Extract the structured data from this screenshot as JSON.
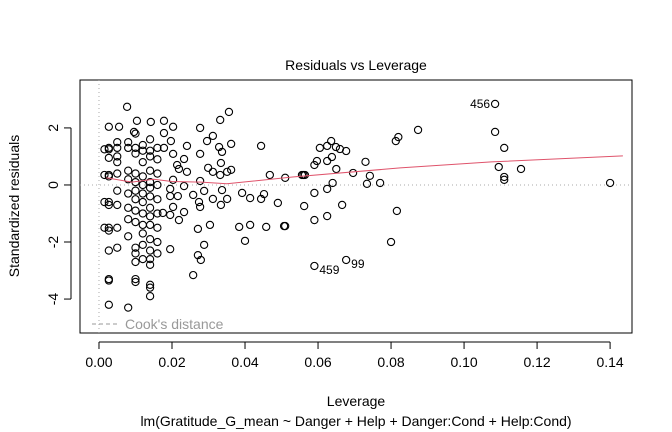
{
  "chart_data": {
    "type": "scatter",
    "title": "Residuals vs Leverage",
    "xlabel": "Leverage",
    "ylabel": "Standardized residuals",
    "subtitle": "lm(Gratitude_G_mean ~ Danger + Help + Danger:Cond + Help:Cond)",
    "xlim": [
      -0.0052,
      0.146
    ],
    "ylim": [
      -5.19,
      3.68
    ],
    "x_ticks": [
      "0.00",
      "0.02",
      "0.04",
      "0.06",
      "0.08",
      "0.10",
      "0.12",
      "0.14"
    ],
    "x_tick_values": [
      0,
      0.02,
      0.04,
      0.06,
      0.08,
      0.1,
      0.12,
      0.14
    ],
    "y_ticks": [
      "-4",
      "-2",
      "0",
      "2"
    ],
    "y_tick_values": [
      -4,
      -2,
      0,
      2
    ],
    "grid": false,
    "legend": {
      "position": "bottom-left",
      "entries": [
        "Cook's distance"
      ]
    },
    "colors": {
      "points": "#000000",
      "smooth": "#df536b",
      "reference": "#aaaaaa",
      "legend": "#999999"
    },
    "labeled_points": [
      {
        "label": "456",
        "x": 0.1085,
        "y": 2.84
      },
      {
        "label": "459",
        "x": 0.059,
        "y": -2.84
      },
      {
        "label": "99",
        "x": 0.0677,
        "y": -2.63
      }
    ],
    "points": [
      [
        0.1085,
        1.86
      ],
      [
        0.111,
        1.3
      ],
      [
        0.1095,
        0.63
      ],
      [
        0.111,
        0.28
      ],
      [
        0.111,
        0.18
      ],
      [
        0.1156,
        0.56
      ],
      [
        0.14,
        0.07
      ],
      [
        0.0874,
        1.93
      ],
      [
        0.0813,
        1.54
      ],
      [
        0.082,
        1.68
      ],
      [
        0.0816,
        -0.91
      ],
      [
        0.08,
        -2.0
      ],
      [
        0.0734,
        0.04
      ],
      [
        0.0742,
        0.32
      ],
      [
        0.073,
        0.81
      ],
      [
        0.0696,
        0.42
      ],
      [
        0.0677,
        1.19
      ],
      [
        0.066,
        1.26
      ],
      [
        0.0649,
        1.33
      ],
      [
        0.0625,
        1.37
      ],
      [
        0.0636,
        1.54
      ],
      [
        0.0605,
        1.3
      ],
      [
        0.059,
        0.7
      ],
      [
        0.0666,
        -0.7
      ],
      [
        0.0625,
        -1.09
      ],
      [
        0.059,
        -1.23
      ],
      [
        0.0625,
        -0.14
      ],
      [
        0.064,
        0.07
      ],
      [
        0.059,
        -0.28
      ],
      [
        0.056,
        0.35
      ],
      [
        0.0562,
        -0.74
      ],
      [
        0.0507,
        -1.44
      ],
      [
        0.0444,
        1.37
      ],
      [
        0.077,
        0.07
      ],
      [
        0.065,
        0.56
      ],
      [
        0.0625,
        0.84
      ],
      [
        0.0597,
        0.84
      ],
      [
        0.0638,
        0.98
      ],
      [
        0.0077,
        2.74
      ],
      [
        0.0027,
        2.04
      ],
      [
        0.0055,
        2.04
      ],
      [
        0.0104,
        2.25
      ],
      [
        0.0142,
        2.21
      ],
      [
        0.0178,
        2.25
      ],
      [
        0.0203,
        2.04
      ],
      [
        0.0178,
        1.82
      ],
      [
        0.0096,
        1.86
      ],
      [
        0.0277,
        2.0
      ],
      [
        0.0332,
        2.28
      ],
      [
        0.0356,
        2.56
      ],
      [
        0.0312,
        1.72
      ],
      [
        0.0296,
        1.54
      ],
      [
        0.0241,
        1.37
      ],
      [
        0.0197,
        1.54
      ],
      [
        0.0178,
        1.3
      ],
      [
        0.0203,
        1.09
      ],
      [
        0.0233,
        0.91
      ],
      [
        0.0277,
        1.09
      ],
      [
        0.0337,
        1.16
      ],
      [
        0.0362,
        1.44
      ],
      [
        0.0329,
        1.33
      ],
      [
        0.0334,
        0.77
      ],
      [
        0.0299,
        0.6
      ],
      [
        0.0312,
        0.46
      ],
      [
        0.0351,
        0.46
      ],
      [
        0.0362,
        0.53
      ],
      [
        0.0332,
        0.35
      ],
      [
        0.0214,
        0.7
      ],
      [
        0.0219,
        0.56
      ],
      [
        0.0241,
        0.46
      ],
      [
        0.0203,
        0.18
      ],
      [
        0.0277,
        0.14
      ],
      [
        0.0468,
        0.35
      ],
      [
        0.051,
        0.25
      ],
      [
        0.0556,
        0.35
      ],
      [
        0.0564,
        0.35
      ],
      [
        0.0233,
        -0.04
      ],
      [
        0.0195,
        -0.14
      ],
      [
        0.0195,
        -0.39
      ],
      [
        0.0216,
        -0.39
      ],
      [
        0.0258,
        -0.35
      ],
      [
        0.0288,
        -0.21
      ],
      [
        0.0337,
        -0.18
      ],
      [
        0.0334,
        -0.7
      ],
      [
        0.0351,
        -0.49
      ],
      [
        0.0312,
        -0.49
      ],
      [
        0.0274,
        -0.6
      ],
      [
        0.0277,
        -0.77
      ],
      [
        0.0203,
        -0.77
      ],
      [
        0.0175,
        -0.98
      ],
      [
        0.0195,
        -1.05
      ],
      [
        0.0219,
        -1.23
      ],
      [
        0.0233,
        -0.95
      ],
      [
        0.0304,
        -1.4
      ],
      [
        0.0271,
        -1.54
      ],
      [
        0.0288,
        -2.1
      ],
      [
        0.0195,
        -2.25
      ],
      [
        0.0271,
        -2.46
      ],
      [
        0.0279,
        -2.63
      ],
      [
        0.0258,
        -3.16
      ],
      [
        0.0392,
        -0.28
      ],
      [
        0.0414,
        -0.46
      ],
      [
        0.0452,
        -0.32
      ],
      [
        0.0444,
        -0.49
      ],
      [
        0.049,
        -0.63
      ],
      [
        0.0384,
        -1.47
      ],
      [
        0.0414,
        -1.4
      ],
      [
        0.0458,
        -1.47
      ],
      [
        0.051,
        -1.44
      ],
      [
        0.04,
        -1.96
      ],
      [
        0.0027,
        1.3
      ],
      [
        0.0027,
        1.25
      ],
      [
        0.0027,
        0.95
      ],
      [
        0.0027,
        0.35
      ],
      [
        0.0027,
        0.3
      ],
      [
        0.0027,
        -0.6
      ],
      [
        0.0027,
        -0.7
      ],
      [
        0.0027,
        -1.5
      ],
      [
        0.0027,
        -1.6
      ],
      [
        0.0027,
        -2.3
      ],
      [
        0.0027,
        -3.3
      ],
      [
        0.0027,
        -3.35
      ],
      [
        0.0027,
        -4.2
      ],
      [
        0.0015,
        1.25
      ],
      [
        0.0015,
        0.35
      ],
      [
        0.0015,
        -0.6
      ],
      [
        0.0015,
        -1.5
      ],
      [
        0.005,
        1.5
      ],
      [
        0.005,
        1.3
      ],
      [
        0.005,
        1.0
      ],
      [
        0.005,
        0.8
      ],
      [
        0.005,
        0.4
      ],
      [
        0.005,
        -0.2
      ],
      [
        0.005,
        -0.7
      ],
      [
        0.005,
        -1.5
      ],
      [
        0.005,
        -2.2
      ],
      [
        0.008,
        1.5
      ],
      [
        0.008,
        1.3
      ],
      [
        0.008,
        0.5
      ],
      [
        0.008,
        0.2
      ],
      [
        0.008,
        -0.3
      ],
      [
        0.008,
        -0.8
      ],
      [
        0.008,
        -1.2
      ],
      [
        0.008,
        -1.8
      ],
      [
        0.008,
        -4.3
      ],
      [
        0.01,
        1.8
      ],
      [
        0.01,
        1.3
      ],
      [
        0.01,
        1.1
      ],
      [
        0.01,
        0.4
      ],
      [
        0.01,
        0.1
      ],
      [
        0.01,
        -0.2
      ],
      [
        0.01,
        -0.5
      ],
      [
        0.01,
        -0.9
      ],
      [
        0.01,
        -1.3
      ],
      [
        0.01,
        -2.2
      ],
      [
        0.01,
        -2.4
      ],
      [
        0.01,
        -2.7
      ],
      [
        0.01,
        -3.3
      ],
      [
        0.01,
        -3.4
      ],
      [
        0.012,
        1.4
      ],
      [
        0.012,
        1.2
      ],
      [
        0.012,
        0.8
      ],
      [
        0.012,
        0.3
      ],
      [
        0.012,
        0.0
      ],
      [
        0.012,
        -0.3
      ],
      [
        0.012,
        -0.6
      ],
      [
        0.012,
        -1.0
      ],
      [
        0.012,
        -1.4
      ],
      [
        0.012,
        -1.7
      ],
      [
        0.012,
        -2.1
      ],
      [
        0.012,
        -2.6
      ],
      [
        0.014,
        1.6
      ],
      [
        0.014,
        1.2
      ],
      [
        0.014,
        1.0
      ],
      [
        0.014,
        0.5
      ],
      [
        0.014,
        0.1
      ],
      [
        0.014,
        -0.1
      ],
      [
        0.014,
        -0.4
      ],
      [
        0.014,
        -0.8
      ],
      [
        0.014,
        -1.1
      ],
      [
        0.014,
        -1.4
      ],
      [
        0.014,
        -1.9
      ],
      [
        0.014,
        -2.3
      ],
      [
        0.014,
        -2.6
      ],
      [
        0.014,
        -2.8
      ],
      [
        0.014,
        -3.5
      ],
      [
        0.014,
        -3.6
      ],
      [
        0.014,
        -3.9
      ],
      [
        0.016,
        1.3
      ],
      [
        0.016,
        0.9
      ],
      [
        0.016,
        0.4
      ],
      [
        0.016,
        0.0
      ],
      [
        0.016,
        -0.5
      ],
      [
        0.016,
        -1.0
      ],
      [
        0.016,
        -1.5
      ],
      [
        0.016,
        -2.0
      ],
      [
        0.016,
        -2.4
      ]
    ],
    "smooth_line": [
      [
        0.002,
        0.25
      ],
      [
        0.009,
        0.1
      ],
      [
        0.015,
        0.2
      ],
      [
        0.02,
        0.12
      ],
      [
        0.028,
        0.1
      ],
      [
        0.035,
        0.04
      ],
      [
        0.053,
        0.28
      ],
      [
        0.0825,
        0.6
      ],
      [
        0.1075,
        0.81
      ],
      [
        0.1435,
        1.02
      ]
    ]
  }
}
